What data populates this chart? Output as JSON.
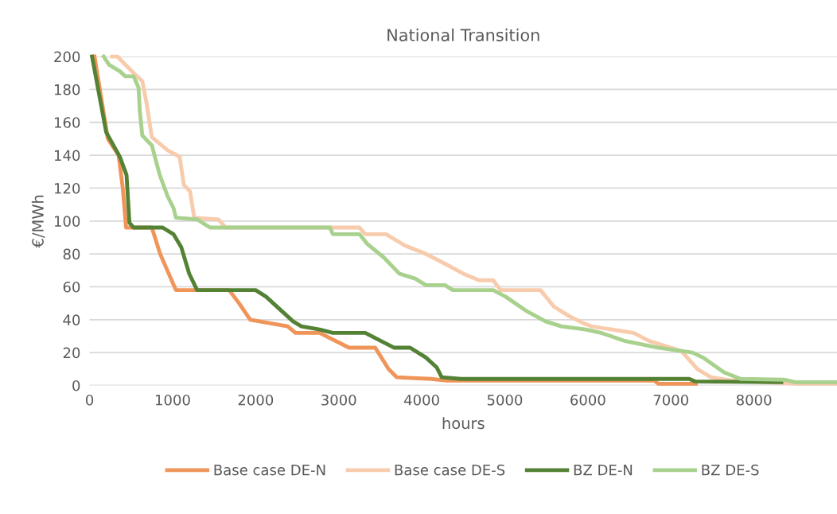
{
  "chart_data": {
    "type": "line",
    "title": "National Transition",
    "xlabel": "hours",
    "ylabel": "€/MWh",
    "xlim": [
      0,
      9000
    ],
    "xticks": [
      0,
      1000,
      2000,
      3000,
      4000,
      5000,
      6000,
      7000,
      8000
    ],
    "ylim": [
      0,
      200
    ],
    "yticks": [
      0,
      20,
      40,
      60,
      80,
      100,
      120,
      140,
      160,
      180,
      200
    ],
    "grid": "y",
    "legend": "bottom",
    "marker": "none",
    "line_style": "solid",
    "series": [
      {
        "name": "Base case DE-N",
        "color": "#f0955a",
        "x": [
          60,
          220,
          350,
          400,
          440,
          750,
          850,
          1040,
          1680,
          1800,
          1935,
          2385,
          2480,
          2770,
          3125,
          3440,
          3600,
          3700,
          4115,
          4300,
          6800,
          6850,
          7300
        ],
        "values": [
          200,
          150,
          140,
          120,
          96,
          96,
          80,
          58,
          58,
          50,
          40,
          36,
          32,
          32,
          23,
          23,
          10,
          5,
          4,
          3,
          3,
          1,
          1
        ]
      },
      {
        "name": "Base case DE-S",
        "color": "#f8cbad",
        "x": [
          270,
          335,
          530,
          635,
          685,
          750,
          940,
          1085,
          1135,
          1210,
          1260,
          1550,
          1640,
          3250,
          3320,
          3570,
          3800,
          4050,
          4280,
          4500,
          4690,
          4860,
          4950,
          5430,
          5590,
          5780,
          5940,
          6040,
          6550,
          6740,
          7125,
          7320,
          7480,
          7740,
          8540,
          9000
        ],
        "values": [
          200,
          200,
          190,
          185,
          172,
          151,
          143,
          139,
          122,
          118,
          102,
          101,
          96,
          96,
          92,
          92,
          85,
          80,
          74,
          68,
          64,
          64,
          58,
          58,
          48,
          42,
          38,
          36,
          32,
          27,
          21,
          10,
          5,
          3,
          1,
          1
        ]
      },
      {
        "name": "BZ DE-N",
        "color": "#548235",
        "x": [
          30,
          200,
          365,
          445,
          480,
          530,
          880,
          1010,
          1105,
          1200,
          1295,
          2000,
          2125,
          2450,
          2550,
          2770,
          2930,
          3320,
          3510,
          3665,
          3860,
          4050,
          4180,
          4240,
          4470,
          7220,
          7290,
          8330
        ],
        "values": [
          200,
          154,
          139,
          128,
          99,
          96,
          96,
          92,
          84,
          68,
          58,
          58,
          54,
          39,
          36,
          34,
          32,
          32,
          27,
          23,
          23,
          17,
          11,
          5,
          4,
          4,
          2.5,
          2
        ]
      },
      {
        "name": "BZ DE-S",
        "color": "#a9d18e",
        "x": [
          170,
          235,
          365,
          430,
          530,
          590,
          605,
          635,
          750,
          845,
          940,
          1010,
          1040,
          1295,
          1450,
          2895,
          2930,
          3250,
          3345,
          3540,
          3730,
          3920,
          4050,
          4280,
          4375,
          4860,
          5010,
          5270,
          5490,
          5680,
          5975,
          6160,
          6450,
          6840,
          7260,
          7385,
          7640,
          7840,
          8375,
          8500,
          9000
        ],
        "values": [
          200,
          195,
          191,
          188,
          188,
          181,
          167,
          152,
          146,
          128,
          115,
          108,
          102,
          101,
          96,
          96,
          92,
          92,
          86,
          78,
          68,
          65,
          61,
          61,
          58,
          58,
          54,
          45,
          39,
          36,
          34,
          32,
          27,
          23,
          20,
          17,
          8,
          4,
          3.5,
          2,
          2
        ]
      }
    ]
  }
}
